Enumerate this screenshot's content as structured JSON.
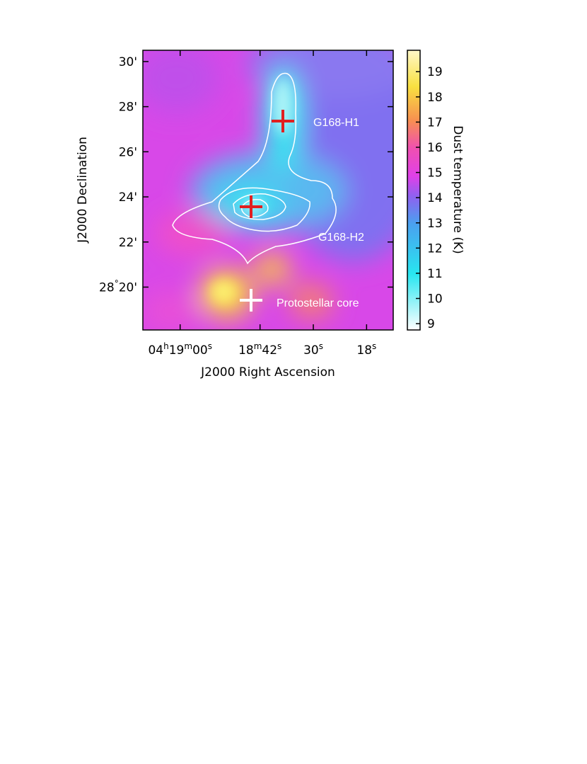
{
  "chart_data": {
    "type": "image-map",
    "xlabel": "J2000 Right Ascension",
    "ylabel": "J2000 Declination",
    "xlim": [
      68.4,
      12
    ],
    "xticks": [
      {
        "value": 60,
        "label": "04h19m00s"
      },
      {
        "value": 42,
        "label": "18m42s"
      },
      {
        "value": 30,
        "label": "30s"
      },
      {
        "value": 18,
        "label": "18s"
      }
    ],
    "ylim": [
      18.1,
      30.5
    ],
    "yticks": [
      {
        "value": 30,
        "label": "30'"
      },
      {
        "value": 28,
        "label": "28'"
      },
      {
        "value": 26,
        "label": "26'"
      },
      {
        "value": 24,
        "label": "24'"
      },
      {
        "value": 22,
        "label": "22'"
      },
      {
        "value": 20,
        "label": "28°20'"
      }
    ],
    "colorbar": {
      "label": "Dust temperature (K)",
      "lim": [
        8.75,
        19.85
      ],
      "ticks": [
        9,
        10,
        11,
        12,
        13,
        14,
        15,
        16,
        17,
        18,
        19
      ]
    },
    "annotations": [
      "G168-H1",
      "G168-H2",
      "Protostellar core"
    ]
  }
}
